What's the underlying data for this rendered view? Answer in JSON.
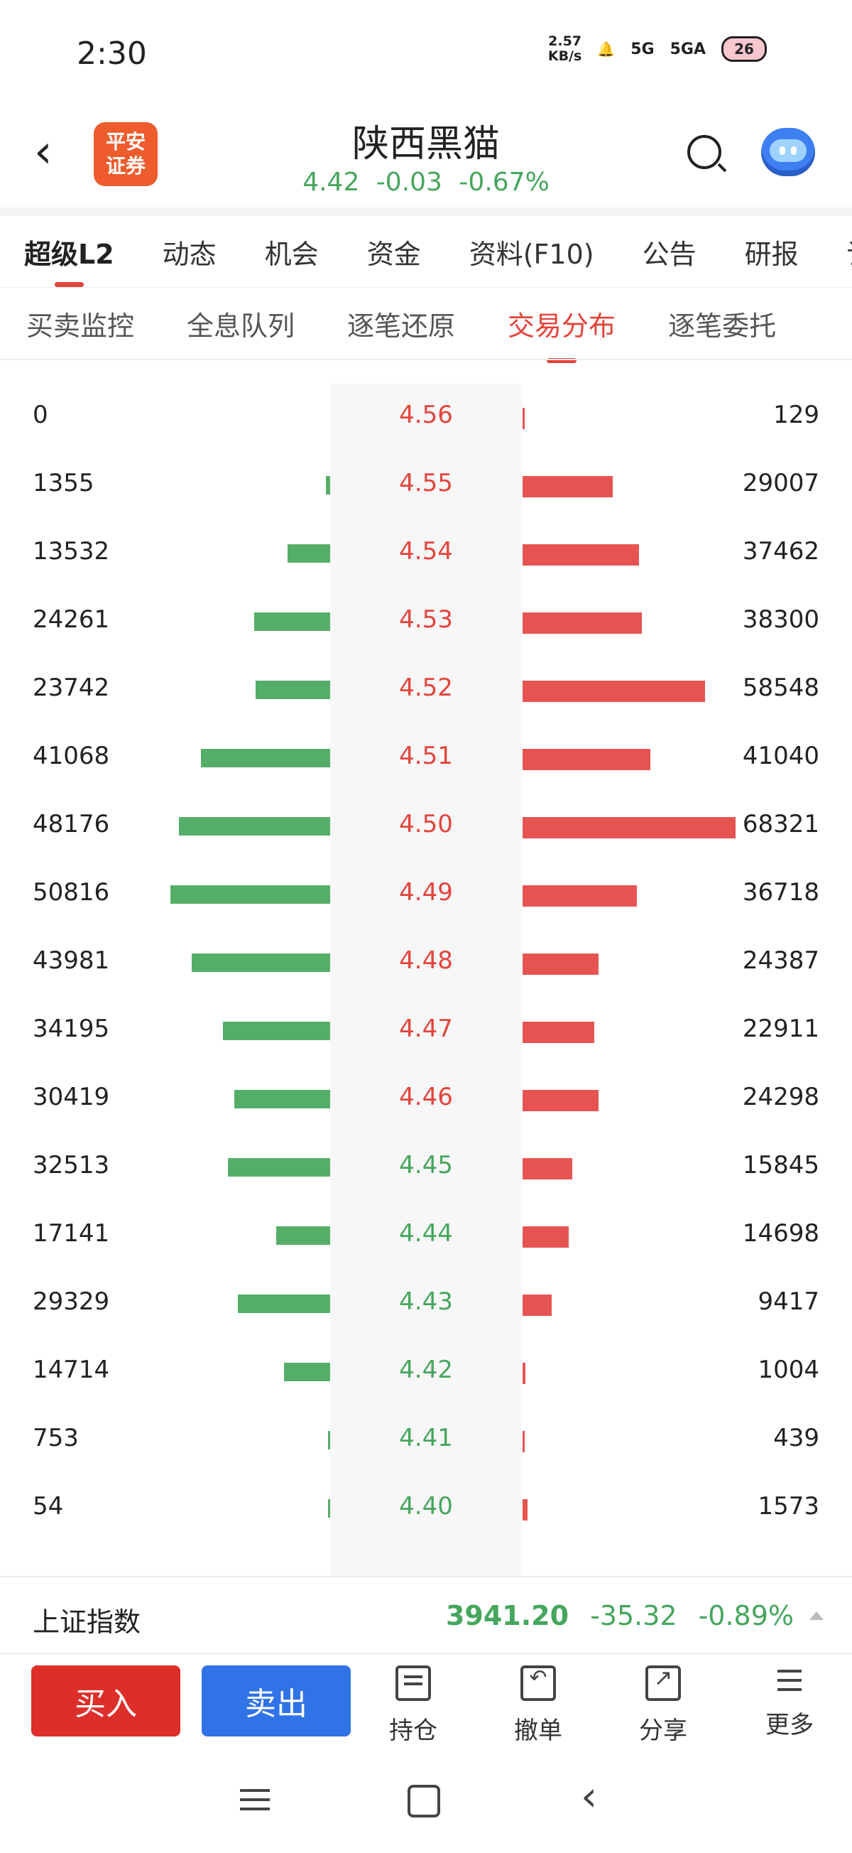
{
  "status_bar": {
    "time": "2:30",
    "net_speed_value": "2.57",
    "net_speed_unit": "KB/s",
    "signal1": "5G",
    "signal2": "5GA",
    "battery": "26"
  },
  "header": {
    "back_icon": "back-chevron-icon",
    "logo_line1": "平安",
    "logo_line2": "证券",
    "stock_name": "陕西黑猫",
    "price": "4.42",
    "change": "-0.03",
    "change_pct": "-0.67%"
  },
  "tabs_main": [
    {
      "label": "超级L2",
      "active": true
    },
    {
      "label": "动态"
    },
    {
      "label": "机会"
    },
    {
      "label": "资金"
    },
    {
      "label": "资料(F10)"
    },
    {
      "label": "公告"
    },
    {
      "label": "研报"
    },
    {
      "label": "讨"
    }
  ],
  "tabs_sub": [
    {
      "label": "买卖监控"
    },
    {
      "label": "全息队列"
    },
    {
      "label": "逐笔还原"
    },
    {
      "label": "交易分布",
      "active": true
    },
    {
      "label": "逐笔委托"
    }
  ],
  "distribution": {
    "colors": {
      "sell": "#55ae68",
      "buy": "#e65451",
      "price_up": "#e3443b",
      "price_down": "#46a65d"
    },
    "ref_price": 4.45,
    "rows": [
      {
        "sell": "0",
        "price": "4.56",
        "buy": "129"
      },
      {
        "sell": "1355",
        "price": "4.55",
        "buy": "29007"
      },
      {
        "sell": "13532",
        "price": "4.54",
        "buy": "37462"
      },
      {
        "sell": "24261",
        "price": "4.53",
        "buy": "38300"
      },
      {
        "sell": "23742",
        "price": "4.52",
        "buy": "58548"
      },
      {
        "sell": "41068",
        "price": "4.51",
        "buy": "41040"
      },
      {
        "sell": "48176",
        "price": "4.50",
        "buy": "68321"
      },
      {
        "sell": "50816",
        "price": "4.49",
        "buy": "36718"
      },
      {
        "sell": "43981",
        "price": "4.48",
        "buy": "24387"
      },
      {
        "sell": "34195",
        "price": "4.47",
        "buy": "22911"
      },
      {
        "sell": "30419",
        "price": "4.46",
        "buy": "24298"
      },
      {
        "sell": "32513",
        "price": "4.45",
        "buy": "15845"
      },
      {
        "sell": "17141",
        "price": "4.44",
        "buy": "14698"
      },
      {
        "sell": "29329",
        "price": "4.43",
        "buy": "9417"
      },
      {
        "sell": "14714",
        "price": "4.42",
        "buy": "1004"
      },
      {
        "sell": "753",
        "price": "4.41",
        "buy": "439"
      },
      {
        "sell": "54",
        "price": "4.40",
        "buy": "1573"
      }
    ]
  },
  "index_bar": {
    "name": "上证指数",
    "value": "3941.20",
    "change": "-35.32",
    "change_pct": "-0.89%"
  },
  "toolbar": {
    "buy_label": "买入",
    "sell_label": "卖出",
    "hold_label": "持仓",
    "cancel_label": "撤单",
    "share_label": "分享",
    "more_label": "更多"
  }
}
